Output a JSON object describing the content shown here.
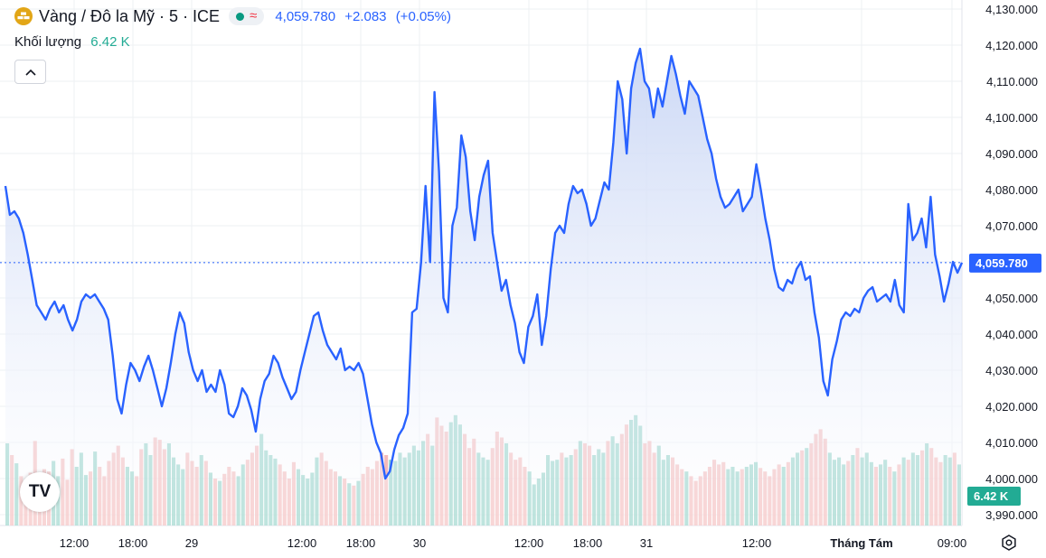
{
  "header": {
    "symbol_title": "Vàng / Đô la Mỹ · 5 · ICE",
    "delayed_glyph": "≈",
    "price": "4,059.780",
    "change": "+2.083",
    "change_pct": "(+0.05%)",
    "volume_label": "Khối lượng",
    "volume_value": "6.42 K"
  },
  "icons": {
    "coin": "gold-coin-icon",
    "collapse": "chevron-up-icon",
    "logo": "tradingview-logo",
    "settings": "gear-icon"
  },
  "logo_text": "TV",
  "colors": {
    "line": "#2962ff",
    "area_top": "#c9d6f5",
    "area_bottom": "#ffffff",
    "volume_up": "#6fc3b4",
    "volume_down": "#f0a3a3",
    "price_label_bg": "#2962ff",
    "volume_label_bg": "#22ab94"
  },
  "chart_data": {
    "type": "area",
    "title": "Vàng / Đô la Mỹ · 5 · ICE",
    "ylim": [
      3987.0,
      4133.0
    ],
    "y_ticks": [
      "4,130.000",
      "4,120.000",
      "4,110.000",
      "4,100.000",
      "4,090.000",
      "4,080.000",
      "4,070.000",
      "4,060.000",
      "4,050.000",
      "4,040.000",
      "4,030.000",
      "4,020.000",
      "4,010.000",
      "4,000.000",
      "3,990.000"
    ],
    "x_ticks": [
      "12:00",
      "18:00",
      "29",
      "12:00",
      "18:00",
      "30",
      "12:00",
      "18:00",
      "31",
      "12:00",
      "Tháng Tám",
      "09:00"
    ],
    "last_price": 4059.78,
    "last_price_label": "4,059.780",
    "last_volume_label": "6.42 K",
    "price_series": {
      "name": "Vàng / Đô la Mỹ",
      "values": [
        4081,
        4073,
        4074,
        4072,
        4068,
        4062,
        4055,
        4048,
        4046,
        4044,
        4047,
        4049,
        4046,
        4048,
        4044,
        4041,
        4044,
        4049,
        4051,
        4050,
        4051,
        4049,
        4047,
        4044,
        4034,
        4022,
        4018,
        4026,
        4032,
        4030,
        4027,
        4031,
        4034,
        4030,
        4025,
        4020,
        4025,
        4032,
        4040,
        4046,
        4043,
        4035,
        4030,
        4027,
        4030,
        4024,
        4026,
        4024,
        4030,
        4026,
        4018,
        4017,
        4020,
        4025,
        4023,
        4019,
        4013,
        4022,
        4027,
        4029,
        4034,
        4032,
        4028,
        4025,
        4022,
        4024,
        4030,
        4035,
        4040,
        4045,
        4046,
        4041,
        4037,
        4035,
        4033,
        4036,
        4030,
        4031,
        4030,
        4032,
        4029,
        4022,
        4015,
        4010,
        4007,
        4000,
        4002,
        4008,
        4012,
        4014,
        4018,
        4046,
        4047,
        4060,
        4081,
        4060,
        4107,
        4085,
        4050,
        4046,
        4070,
        4075,
        4095,
        4089,
        4074,
        4066,
        4078,
        4084,
        4088,
        4068,
        4060,
        4052,
        4055,
        4048,
        4043,
        4035,
        4032,
        4042,
        4045,
        4051,
        4037,
        4045,
        4058,
        4068,
        4070,
        4068,
        4076,
        4081,
        4079,
        4080,
        4076,
        4070,
        4072,
        4077,
        4082,
        4080,
        4093,
        4110,
        4105,
        4090,
        4108,
        4115,
        4119,
        4110,
        4108,
        4100,
        4108,
        4103,
        4110,
        4117,
        4112,
        4106,
        4101,
        4110,
        4108,
        4106,
        4100,
        4094,
        4090,
        4083,
        4078,
        4075,
        4076,
        4078,
        4080,
        4074,
        4076,
        4078,
        4087,
        4080,
        4072,
        4066,
        4058,
        4053,
        4052,
        4055,
        4054,
        4058,
        4060,
        4055,
        4056,
        4046,
        4039,
        4027,
        4023,
        4033,
        4038,
        4044,
        4046,
        4045,
        4047,
        4046,
        4050,
        4052,
        4053,
        4049,
        4050,
        4051,
        4049,
        4055,
        4048,
        4046,
        4076,
        4066,
        4068,
        4072,
        4064,
        4078,
        4062,
        4056,
        4049,
        4054,
        4060,
        4057,
        4059.78
      ]
    },
    "volume_series": {
      "name": "Khối lượng",
      "values": [
        0.7,
        0.6,
        0.53,
        0.42,
        0.38,
        0.45,
        0.72,
        0.4,
        0.48,
        0.46,
        0.55,
        0.42,
        0.57,
        0.39,
        0.65,
        0.5,
        0.62,
        0.43,
        0.46,
        0.63,
        0.5,
        0.42,
        0.55,
        0.62,
        0.68,
        0.58,
        0.5,
        0.46,
        0.42,
        0.65,
        0.7,
        0.6,
        0.75,
        0.73,
        0.65,
        0.7,
        0.58,
        0.52,
        0.48,
        0.62,
        0.55,
        0.5,
        0.6,
        0.55,
        0.45,
        0.4,
        0.38,
        0.44,
        0.5,
        0.46,
        0.42,
        0.52,
        0.56,
        0.62,
        0.68,
        0.78,
        0.64,
        0.6,
        0.57,
        0.52,
        0.46,
        0.4,
        0.54,
        0.48,
        0.43,
        0.4,
        0.45,
        0.58,
        0.62,
        0.55,
        0.48,
        0.46,
        0.42,
        0.4,
        0.36,
        0.34,
        0.38,
        0.44,
        0.5,
        0.48,
        0.55,
        0.62,
        0.6,
        0.56,
        0.55,
        0.62,
        0.58,
        0.62,
        0.68,
        0.64,
        0.72,
        0.78,
        0.68,
        0.92,
        0.85,
        0.8,
        0.88,
        0.94,
        0.86,
        0.78,
        0.66,
        0.74,
        0.62,
        0.58,
        0.56,
        0.66,
        0.8,
        0.75,
        0.7,
        0.62,
        0.56,
        0.58,
        0.5,
        0.46,
        0.35,
        0.4,
        0.45,
        0.6,
        0.55,
        0.56,
        0.62,
        0.58,
        0.6,
        0.65,
        0.72,
        0.7,
        0.68,
        0.6,
        0.65,
        0.62,
        0.72,
        0.76,
        0.7,
        0.78,
        0.86,
        0.9,
        0.94,
        0.85,
        0.7,
        0.72,
        0.62,
        0.68,
        0.56,
        0.6,
        0.58,
        0.52,
        0.48,
        0.46,
        0.42,
        0.38,
        0.42,
        0.46,
        0.5,
        0.56,
        0.52,
        0.54,
        0.48,
        0.5,
        0.46,
        0.48,
        0.5,
        0.52,
        0.54,
        0.49,
        0.46,
        0.42,
        0.48,
        0.52,
        0.5,
        0.54,
        0.58,
        0.62,
        0.64,
        0.66,
        0.7,
        0.78,
        0.82,
        0.74,
        0.62,
        0.56,
        0.58,
        0.52,
        0.55,
        0.6,
        0.66,
        0.58,
        0.62,
        0.54,
        0.5,
        0.52,
        0.56,
        0.5,
        0.46,
        0.52,
        0.58,
        0.56,
        0.62,
        0.6,
        0.64,
        0.7,
        0.66,
        0.58,
        0.54,
        0.6,
        0.58,
        0.62,
        0.52
      ]
    }
  }
}
